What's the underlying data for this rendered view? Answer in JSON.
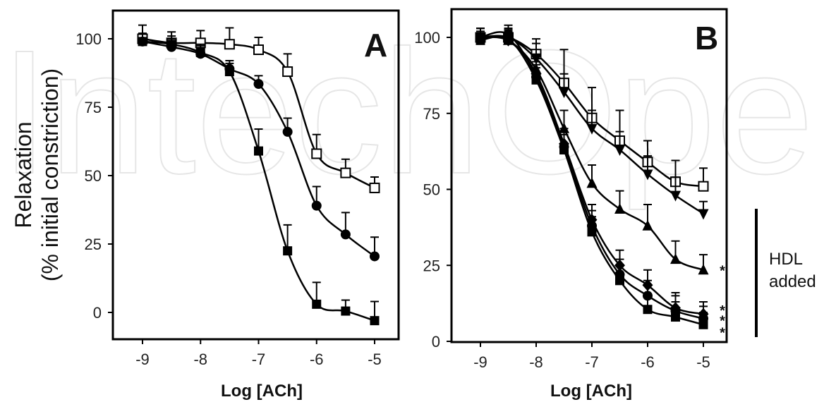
{
  "watermark": "IntechOpen",
  "y_label_line1": "Relaxation",
  "y_label_line2": "(% initial constriction)",
  "hdl_annotation": {
    "line1": "HDL",
    "line2": "added"
  },
  "chart_data": [
    {
      "type": "line",
      "panel_label": "A",
      "xlabel": "Log [ACh]",
      "ylabel": "",
      "x": [
        -9,
        -8.5,
        -8,
        -7.5,
        -7,
        -6.5,
        -6,
        -5.5,
        -5
      ],
      "xticks": [
        "-9",
        "-8",
        "-7",
        "-6",
        "-5"
      ],
      "yticks": [
        "0",
        "25",
        "50",
        "75",
        "100"
      ],
      "xlim": [
        -9.5,
        -4.75
      ],
      "ylim": [
        -10,
        110
      ],
      "series": [
        {
          "marker": "open-square",
          "values": [
            100,
            98.5,
            98.5,
            98,
            96,
            88,
            58,
            51,
            45.5
          ],
          "errors": [
            5,
            4,
            4.5,
            6,
            4.5,
            6.5,
            7,
            5,
            4
          ]
        },
        {
          "marker": "filled-circle",
          "values": [
            99,
            97,
            94.5,
            89,
            83.5,
            66,
            39,
            28.5,
            20.5
          ],
          "errors": [
            3,
            3,
            3,
            3,
            3,
            5,
            7,
            8,
            7
          ]
        },
        {
          "marker": "filled-square",
          "values": [
            99,
            98,
            95,
            88,
            59,
            22.5,
            3,
            0.5,
            -3
          ],
          "errors": [
            3,
            3,
            3,
            3,
            8,
            9.5,
            8,
            4,
            7
          ]
        }
      ]
    },
    {
      "type": "line",
      "panel_label": "B",
      "xlabel": "Log [ACh]",
      "ylabel": "",
      "x": [
        -9,
        -8.5,
        -8,
        -7.5,
        -7,
        -6.5,
        -6,
        -5.5,
        -5
      ],
      "xticks": [
        "-9",
        "-8",
        "-7",
        "-6",
        "-5"
      ],
      "yticks": [
        "0",
        "25",
        "50",
        "75",
        "100"
      ],
      "xlim": [
        -9.6,
        -4.7
      ],
      "ylim": [
        0,
        109
      ],
      "significance": [
        "*",
        "*",
        "*",
        "*"
      ],
      "series": [
        {
          "marker": "open-square",
          "values": [
            100,
            100,
            94.5,
            85,
            73.5,
            66,
            59,
            52.5,
            51
          ],
          "errors": [
            3,
            3,
            5,
            11,
            10,
            10,
            7,
            7,
            6
          ]
        },
        {
          "marker": "filled-triangle-down",
          "values": [
            100,
            100,
            93,
            82,
            70,
            63,
            55,
            48,
            42
          ],
          "errors": [
            3,
            3,
            5,
            6,
            6,
            6,
            6,
            6,
            4
          ]
        },
        {
          "marker": "filled-triangle-up",
          "values": [
            100,
            99,
            89.5,
            70,
            52,
            43.5,
            38,
            27,
            23.5
          ],
          "errors": [
            3,
            3,
            5,
            6,
            6,
            6,
            7,
            6,
            5
          ]
        },
        {
          "marker": "filled-diamond",
          "values": [
            100,
            99,
            88,
            65,
            40,
            25,
            18.5,
            11,
            9
          ],
          "errors": [
            3,
            3,
            4,
            5,
            5,
            5,
            5,
            5,
            4
          ]
        },
        {
          "marker": "filled-circle",
          "values": [
            100,
            101,
            87,
            64,
            38,
            22,
            15,
            10,
            7.5
          ],
          "errors": [
            3,
            3,
            4,
            5,
            5,
            5,
            5,
            5,
            4
          ]
        },
        {
          "marker": "filled-square",
          "values": [
            99,
            99.5,
            86,
            63,
            36,
            20,
            10.5,
            8,
            5.5
          ],
          "errors": [
            3,
            3,
            4,
            5,
            5,
            5,
            5,
            5,
            4
          ]
        }
      ]
    }
  ]
}
